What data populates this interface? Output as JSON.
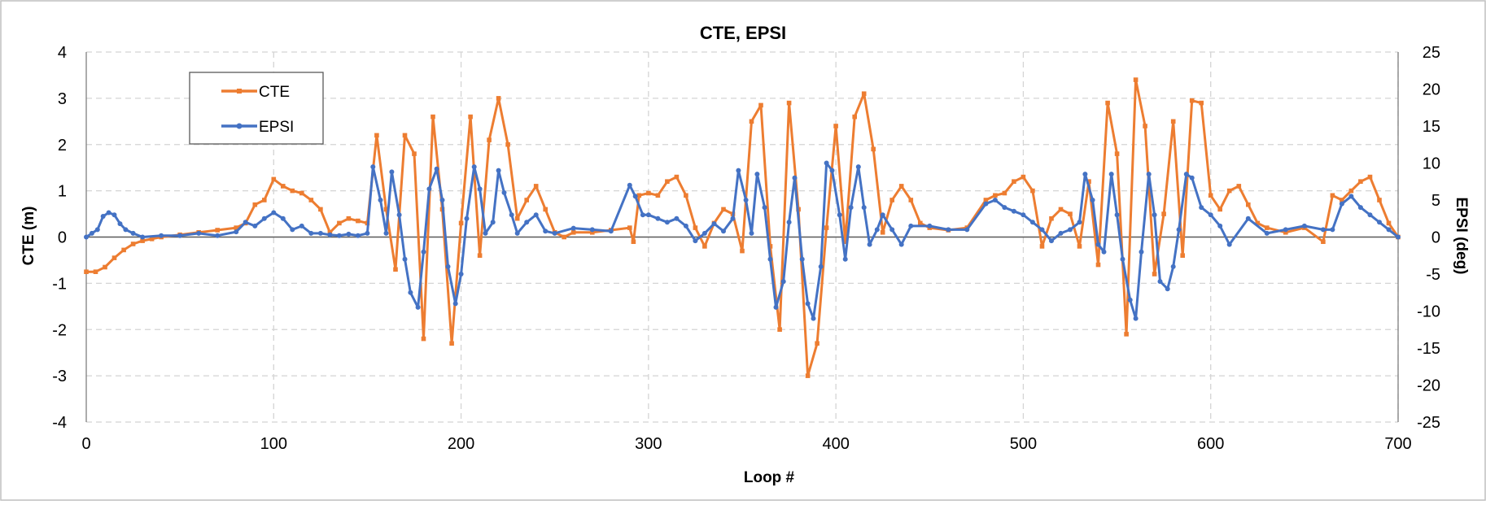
{
  "chart_data": {
    "type": "line",
    "title": "CTE, EPSI",
    "xlabel": "Loop #",
    "ylabel": "CTE (m)",
    "y2label": "EPSI (deg)",
    "xlim": [
      0,
      700
    ],
    "ylim": [
      -4,
      4
    ],
    "y2lim": [
      -25,
      25
    ],
    "x_ticks": [
      0,
      100,
      200,
      300,
      400,
      500,
      600,
      700
    ],
    "y_ticks": [
      -4,
      -3,
      -2,
      -1,
      0,
      1,
      2,
      3,
      4
    ],
    "y2_ticks": [
      -25,
      -20,
      -15,
      -10,
      -5,
      0,
      5,
      10,
      15,
      20,
      25
    ],
    "grid": true,
    "legend": "top-left",
    "series": [
      {
        "name": "CTE",
        "axis": "left",
        "color": "#ED7D31",
        "marker": "square",
        "x": [
          0,
          5,
          10,
          15,
          20,
          25,
          30,
          35,
          40,
          50,
          60,
          70,
          80,
          85,
          90,
          95,
          100,
          105,
          110,
          115,
          120,
          125,
          130,
          135,
          140,
          145,
          150,
          155,
          160,
          165,
          170,
          175,
          180,
          185,
          190,
          195,
          200,
          205,
          210,
          215,
          220,
          225,
          230,
          235,
          240,
          245,
          250,
          255,
          260,
          270,
          280,
          290,
          292,
          295,
          300,
          305,
          310,
          315,
          320,
          325,
          330,
          335,
          340,
          345,
          350,
          355,
          360,
          365,
          370,
          375,
          380,
          385,
          390,
          395,
          400,
          405,
          410,
          415,
          420,
          425,
          430,
          435,
          440,
          445,
          450,
          460,
          470,
          480,
          485,
          490,
          495,
          500,
          505,
          510,
          515,
          520,
          525,
          530,
          535,
          540,
          545,
          550,
          555,
          560,
          565,
          570,
          575,
          580,
          585,
          590,
          595,
          600,
          605,
          610,
          615,
          620,
          625,
          630,
          640,
          650,
          660,
          665,
          670,
          675,
          680,
          685,
          690,
          695,
          700
        ],
        "values": [
          -0.75,
          -0.75,
          -0.65,
          -0.45,
          -0.28,
          -0.15,
          -0.08,
          -0.04,
          0.0,
          0.05,
          0.1,
          0.15,
          0.2,
          0.3,
          0.7,
          0.8,
          1.25,
          1.1,
          1.0,
          0.95,
          0.8,
          0.6,
          0.1,
          0.3,
          0.4,
          0.35,
          0.3,
          2.2,
          0.6,
          -0.7,
          2.2,
          1.8,
          -2.2,
          2.6,
          0.6,
          -2.3,
          0.3,
          2.6,
          -0.4,
          2.1,
          3.0,
          2.0,
          0.4,
          0.8,
          1.1,
          0.6,
          0.1,
          0.0,
          0.1,
          0.1,
          0.15,
          0.2,
          -0.1,
          0.9,
          0.95,
          0.9,
          1.2,
          1.3,
          0.9,
          0.2,
          -0.2,
          0.3,
          0.6,
          0.5,
          -0.3,
          2.5,
          2.85,
          -0.2,
          -2.0,
          2.9,
          0.6,
          -3.0,
          -2.3,
          0.2,
          2.4,
          -0.1,
          2.6,
          3.1,
          1.9,
          0.1,
          0.8,
          1.1,
          0.8,
          0.3,
          0.2,
          0.15,
          0.2,
          0.8,
          0.9,
          0.95,
          1.2,
          1.3,
          1.0,
          -0.2,
          0.4,
          0.6,
          0.5,
          -0.2,
          1.2,
          -0.6,
          2.9,
          1.8,
          -2.1,
          3.4,
          2.4,
          -0.8,
          0.5,
          2.5,
          -0.4,
          2.95,
          2.9,
          0.9,
          0.6,
          1.0,
          1.1,
          0.7,
          0.3,
          0.2,
          0.1,
          0.2,
          -0.1,
          0.9,
          0.8,
          1.0,
          1.2,
          1.3,
          0.8,
          0.3,
          0.0
        ]
      },
      {
        "name": "EPSI",
        "axis": "right",
        "color": "#4472C4",
        "marker": "circle",
        "x": [
          0,
          3,
          6,
          9,
          12,
          15,
          18,
          21,
          25,
          30,
          40,
          50,
          60,
          70,
          80,
          85,
          90,
          95,
          100,
          105,
          110,
          115,
          120,
          125,
          130,
          135,
          140,
          145,
          150,
          153,
          157,
          160,
          163,
          167,
          170,
          173,
          177,
          180,
          183,
          187,
          190,
          193,
          197,
          200,
          203,
          207,
          210,
          213,
          217,
          220,
          223,
          227,
          230,
          235,
          240,
          245,
          250,
          260,
          270,
          280,
          290,
          293,
          297,
          300,
          305,
          310,
          315,
          320,
          325,
          330,
          335,
          340,
          345,
          348,
          352,
          355,
          358,
          362,
          365,
          368,
          372,
          375,
          378,
          382,
          385,
          388,
          392,
          395,
          398,
          402,
          405,
          408,
          412,
          415,
          418,
          422,
          425,
          430,
          435,
          440,
          450,
          460,
          470,
          480,
          485,
          490,
          495,
          500,
          505,
          510,
          515,
          520,
          525,
          530,
          533,
          537,
          540,
          543,
          547,
          550,
          553,
          557,
          560,
          563,
          567,
          570,
          573,
          577,
          580,
          583,
          587,
          590,
          595,
          600,
          605,
          610,
          620,
          630,
          640,
          650,
          660,
          665,
          670,
          675,
          680,
          685,
          690,
          695,
          700
        ],
        "values": [
          0.0,
          0.5,
          1.0,
          2.8,
          3.3,
          3.0,
          1.8,
          1.0,
          0.5,
          0.0,
          0.2,
          0.2,
          0.5,
          0.2,
          0.7,
          2.0,
          1.5,
          2.5,
          3.3,
          2.5,
          1.0,
          1.5,
          0.5,
          0.5,
          0.3,
          0.2,
          0.4,
          0.2,
          0.5,
          9.5,
          5.0,
          0.5,
          8.8,
          3.0,
          -3.0,
          -7.5,
          -9.5,
          -2.0,
          6.5,
          9.2,
          5.0,
          -4.0,
          -9.0,
          -5.0,
          2.5,
          9.5,
          6.5,
          0.5,
          2.0,
          9.0,
          6.0,
          3.0,
          0.5,
          2.0,
          3.0,
          0.8,
          0.5,
          1.2,
          1.0,
          0.8,
          7.0,
          5.5,
          3.0,
          3.0,
          2.5,
          2.0,
          2.5,
          1.5,
          -0.5,
          0.5,
          1.8,
          0.8,
          2.5,
          9.0,
          5.0,
          0.5,
          8.5,
          4.0,
          -3.0,
          -9.5,
          -6.0,
          2.0,
          8.0,
          -3.0,
          -9.0,
          -11.0,
          -4.0,
          10.0,
          9.0,
          3.0,
          -3.0,
          4.0,
          9.5,
          4.0,
          -1.0,
          1.0,
          3.0,
          1.0,
          -1.0,
          1.5,
          1.5,
          1.0,
          1.0,
          4.5,
          5.0,
          4.0,
          3.5,
          3.0,
          2.0,
          1.0,
          -0.5,
          0.5,
          1.0,
          2.0,
          8.5,
          5.0,
          -1.0,
          -2.0,
          8.5,
          3.0,
          -3.0,
          -8.5,
          -11.0,
          -2.0,
          8.5,
          3.0,
          -6.0,
          -7.0,
          -4.0,
          1.0,
          8.5,
          8.0,
          4.0,
          3.0,
          1.5,
          -1.0,
          2.5,
          0.5,
          1.0,
          1.5,
          1.0,
          1.0,
          4.5,
          5.5,
          4.0,
          3.0,
          2.0,
          1.0,
          0.0
        ]
      }
    ]
  }
}
